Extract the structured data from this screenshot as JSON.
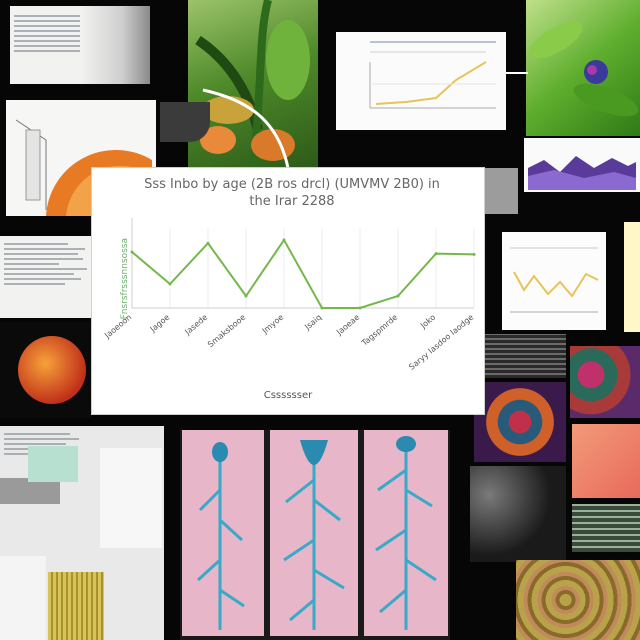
{
  "collage": {
    "main_chart": {
      "title": "Sss Inbo by age (2B ros drcl) (UMVMV 2B0) in the Irar 2288",
      "xlabel": "Csssssser",
      "ylabel": "Fnsrsfrsssnnsossa"
    },
    "colors": {
      "background": "#060606",
      "line": "#74b84a",
      "panel_pink": "#e7b6c8",
      "vein_blue": "#3aa9c9"
    },
    "tiles": [
      {
        "name": "top-left-document",
        "kind": "document"
      },
      {
        "name": "plant-photo-top",
        "kind": "photo"
      },
      {
        "name": "small-line-chart-top",
        "kind": "chart-thumb"
      },
      {
        "name": "plant-photo-top-right",
        "kind": "photo"
      },
      {
        "name": "half-orange-diagram",
        "kind": "diagram"
      },
      {
        "name": "purple-area-chart",
        "kind": "chart-thumb"
      },
      {
        "name": "small-table-left",
        "kind": "document"
      },
      {
        "name": "orange-sphere",
        "kind": "illustration"
      },
      {
        "name": "right-small-chart",
        "kind": "chart-thumb"
      },
      {
        "name": "botanical-veins-triptych",
        "kind": "illustration"
      },
      {
        "name": "abstract-paint-right",
        "kind": "illustration"
      },
      {
        "name": "bottom-left-documents",
        "kind": "document"
      },
      {
        "name": "bottom-right-texture",
        "kind": "illustration"
      }
    ]
  },
  "chart_data": {
    "type": "line",
    "title": "Sss Inbo by age (2B ros drcl) (UMVMV 2B0) in the Irar 2288",
    "xlabel": "Csssssser",
    "ylabel": "Fnsrsfrsssnnsossa",
    "categories": [
      "Jaoeoon",
      "Jagoe",
      "Jasede",
      "Smaksbooe",
      "Jmyoe",
      "Jsaiq",
      "Jaoeae",
      "Tagspmrde",
      "Joko",
      "Saryy Iasdoo Iaodge"
    ],
    "series": [
      {
        "values": [
          70,
          30,
          81,
          15,
          85,
          0,
          0,
          15,
          68,
          67
        ]
      }
    ],
    "ylim": [
      0,
      100
    ],
    "grid": true,
    "legend": "none"
  }
}
